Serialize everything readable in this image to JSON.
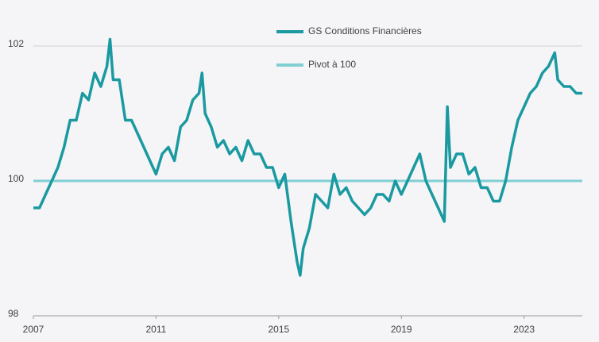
{
  "chart_data": {
    "type": "line",
    "x": [
      2007.0,
      2007.2,
      2007.4,
      2007.6,
      2007.8,
      2008.0,
      2008.2,
      2008.4,
      2008.6,
      2008.8,
      2009.0,
      2009.2,
      2009.4,
      2009.5,
      2009.6,
      2009.8,
      2010.0,
      2010.2,
      2010.4,
      2010.6,
      2010.8,
      2011.0,
      2011.2,
      2011.4,
      2011.6,
      2011.8,
      2012.0,
      2012.2,
      2012.4,
      2012.5,
      2012.6,
      2012.8,
      2013.0,
      2013.2,
      2013.4,
      2013.6,
      2013.8,
      2014.0,
      2014.2,
      2014.4,
      2014.6,
      2014.8,
      2015.0,
      2015.2,
      2015.4,
      2015.6,
      2015.7,
      2015.8,
      2016.0,
      2016.2,
      2016.4,
      2016.6,
      2016.8,
      2017.0,
      2017.2,
      2017.4,
      2017.6,
      2017.8,
      2018.0,
      2018.2,
      2018.4,
      2018.6,
      2018.8,
      2019.0,
      2019.2,
      2019.4,
      2019.6,
      2019.8,
      2020.0,
      2020.2,
      2020.4,
      2020.5,
      2020.6,
      2020.8,
      2021.0,
      2021.2,
      2021.4,
      2021.6,
      2021.8,
      2022.0,
      2022.2,
      2022.4,
      2022.6,
      2022.8,
      2023.0,
      2023.2,
      2023.4,
      2023.6,
      2023.8,
      2024.0,
      2024.1,
      2024.3,
      2024.5,
      2024.7,
      2024.9
    ],
    "series": [
      {
        "name": "GS Conditions Financières",
        "color": "#1a9aa0",
        "values": [
          99.6,
          99.6,
          99.8,
          100.0,
          100.2,
          100.5,
          100.9,
          100.9,
          101.3,
          101.2,
          101.6,
          101.4,
          101.7,
          102.1,
          101.5,
          101.5,
          100.9,
          100.9,
          100.7,
          100.5,
          100.3,
          100.1,
          100.4,
          100.5,
          100.3,
          100.8,
          100.9,
          101.2,
          101.3,
          101.6,
          101.0,
          100.8,
          100.5,
          100.6,
          100.4,
          100.5,
          100.3,
          100.6,
          100.4,
          100.4,
          100.2,
          100.2,
          99.9,
          100.1,
          99.4,
          98.8,
          98.6,
          99.0,
          99.3,
          99.8,
          99.7,
          99.6,
          100.1,
          99.8,
          99.9,
          99.7,
          99.6,
          99.5,
          99.6,
          99.8,
          99.8,
          99.7,
          100.0,
          99.8,
          100.0,
          100.2,
          100.4,
          100.0,
          99.8,
          99.6,
          99.4,
          101.1,
          100.2,
          100.4,
          100.4,
          100.1,
          100.2,
          99.9,
          99.9,
          99.7,
          99.7,
          100.0,
          100.5,
          100.9,
          101.1,
          101.3,
          101.4,
          101.6,
          101.7,
          101.9,
          101.5,
          101.4,
          101.4,
          101.3,
          101.3
        ]
      },
      {
        "name": "Pivot à 100",
        "color": "#7fcfd3",
        "x": [
          2007.0,
          2024.9
        ],
        "values": [
          100,
          100
        ]
      }
    ],
    "xlim": [
      2007.0,
      2024.9
    ],
    "xticks": [
      2007,
      2011,
      2015,
      2019,
      2023
    ],
    "ylim": [
      98,
      102.4
    ],
    "yticks": [
      98,
      100,
      102
    ],
    "grid": true
  }
}
